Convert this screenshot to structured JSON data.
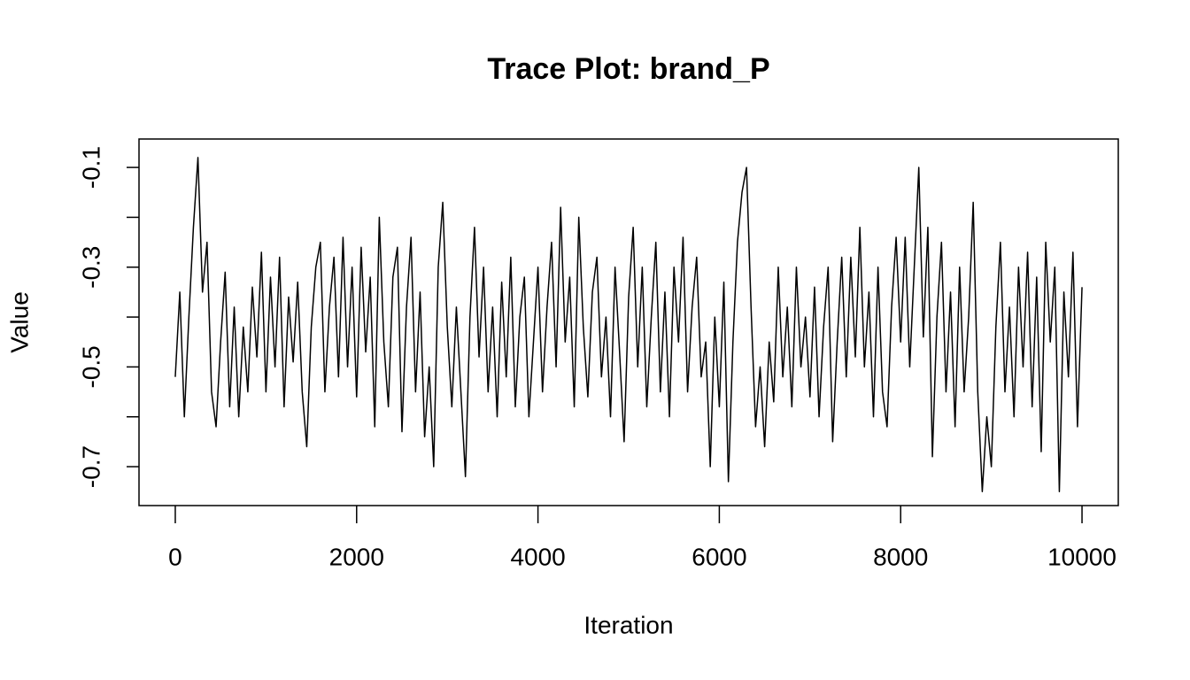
{
  "chart_data": {
    "type": "line",
    "title": "Trace Plot: brand_P",
    "x_label": "Iteration",
    "y_label": "Value",
    "color": "#000000",
    "x": [
      0,
      50,
      100,
      150,
      200,
      250,
      300,
      350,
      400,
      450,
      500,
      550,
      600,
      650,
      700,
      750,
      800,
      850,
      900,
      950,
      1000,
      1050,
      1100,
      1150,
      1200,
      1250,
      1300,
      1350,
      1400,
      1450,
      1500,
      1550,
      1600,
      1650,
      1700,
      1750,
      1800,
      1850,
      1900,
      1950,
      2000,
      2050,
      2100,
      2150,
      2200,
      2250,
      2300,
      2350,
      2400,
      2450,
      2500,
      2550,
      2600,
      2650,
      2700,
      2750,
      2800,
      2850,
      2900,
      2950,
      3000,
      3050,
      3100,
      3150,
      3200,
      3250,
      3300,
      3350,
      3400,
      3450,
      3500,
      3550,
      3600,
      3650,
      3700,
      3750,
      3800,
      3850,
      3900,
      3950,
      4000,
      4050,
      4100,
      4150,
      4200,
      4250,
      4300,
      4350,
      4400,
      4450,
      4500,
      4550,
      4600,
      4650,
      4700,
      4750,
      4800,
      4850,
      4900,
      4950,
      5000,
      5050,
      5100,
      5150,
      5200,
      5250,
      5300,
      5350,
      5400,
      5450,
      5500,
      5550,
      5600,
      5650,
      5700,
      5750,
      5800,
      5850,
      5900,
      5950,
      6000,
      6050,
      6100,
      6150,
      6200,
      6250,
      6300,
      6350,
      6400,
      6450,
      6500,
      6550,
      6600,
      6650,
      6700,
      6750,
      6800,
      6850,
      6900,
      6950,
      7000,
      7050,
      7100,
      7150,
      7200,
      7250,
      7300,
      7350,
      7400,
      7450,
      7500,
      7550,
      7600,
      7650,
      7700,
      7750,
      7800,
      7850,
      7900,
      7950,
      8000,
      8050,
      8100,
      8150,
      8200,
      8250,
      8300,
      8350,
      8400,
      8450,
      8500,
      8550,
      8600,
      8650,
      8700,
      8750,
      8800,
      8850,
      8900,
      8950,
      9000,
      9050,
      9100,
      9150,
      9200,
      9250,
      9300,
      9350,
      9400,
      9450,
      9500,
      9550,
      9600,
      9650,
      9700,
      9750,
      9800,
      9850,
      9900,
      9950,
      10000
    ],
    "values": [
      -0.52,
      -0.35,
      -0.6,
      -0.4,
      -0.22,
      -0.08,
      -0.35,
      -0.25,
      -0.55,
      -0.62,
      -0.45,
      -0.31,
      -0.58,
      -0.38,
      -0.6,
      -0.42,
      -0.55,
      -0.34,
      -0.48,
      -0.27,
      -0.55,
      -0.32,
      -0.5,
      -0.28,
      -0.58,
      -0.36,
      -0.49,
      -0.33,
      -0.55,
      -0.66,
      -0.42,
      -0.3,
      -0.25,
      -0.55,
      -0.38,
      -0.28,
      -0.52,
      -0.24,
      -0.5,
      -0.3,
      -0.56,
      -0.26,
      -0.47,
      -0.32,
      -0.62,
      -0.2,
      -0.45,
      -0.58,
      -0.32,
      -0.26,
      -0.63,
      -0.38,
      -0.24,
      -0.55,
      -0.35,
      -0.64,
      -0.5,
      -0.7,
      -0.3,
      -0.17,
      -0.42,
      -0.58,
      -0.38,
      -0.55,
      -0.72,
      -0.4,
      -0.22,
      -0.48,
      -0.3,
      -0.55,
      -0.38,
      -0.6,
      -0.33,
      -0.52,
      -0.28,
      -0.58,
      -0.4,
      -0.32,
      -0.6,
      -0.45,
      -0.3,
      -0.55,
      -0.38,
      -0.25,
      -0.5,
      -0.18,
      -0.45,
      -0.32,
      -0.58,
      -0.2,
      -0.42,
      -0.56,
      -0.35,
      -0.28,
      -0.52,
      -0.4,
      -0.6,
      -0.3,
      -0.47,
      -0.65,
      -0.36,
      -0.22,
      -0.5,
      -0.3,
      -0.58,
      -0.4,
      -0.25,
      -0.55,
      -0.35,
      -0.6,
      -0.3,
      -0.45,
      -0.24,
      -0.55,
      -0.38,
      -0.28,
      -0.52,
      -0.45,
      -0.7,
      -0.4,
      -0.58,
      -0.33,
      -0.73,
      -0.45,
      -0.25,
      -0.15,
      -0.1,
      -0.38,
      -0.62,
      -0.5,
      -0.66,
      -0.45,
      -0.57,
      -0.3,
      -0.52,
      -0.38,
      -0.58,
      -0.3,
      -0.5,
      -0.4,
      -0.56,
      -0.34,
      -0.6,
      -0.42,
      -0.3,
      -0.65,
      -0.45,
      -0.28,
      -0.52,
      -0.28,
      -0.48,
      -0.22,
      -0.5,
      -0.35,
      -0.6,
      -0.3,
      -0.55,
      -0.62,
      -0.38,
      -0.24,
      -0.45,
      -0.24,
      -0.5,
      -0.3,
      -0.1,
      -0.44,
      -0.22,
      -0.68,
      -0.4,
      -0.25,
      -0.55,
      -0.35,
      -0.62,
      -0.3,
      -0.55,
      -0.4,
      -0.17,
      -0.55,
      -0.75,
      -0.6,
      -0.7,
      -0.42,
      -0.25,
      -0.55,
      -0.38,
      -0.6,
      -0.3,
      -0.5,
      -0.27,
      -0.58,
      -0.32,
      -0.67,
      -0.25,
      -0.45,
      -0.3,
      -0.75,
      -0.35,
      -0.52,
      -0.27,
      -0.62,
      -0.34
    ],
    "xlim": [
      -400,
      10400
    ],
    "xticks": [
      0,
      2000,
      4000,
      6000,
      8000,
      10000
    ],
    "ylim": [
      -0.778,
      -0.043
    ],
    "yticks": [
      -0.1,
      -0.3,
      -0.5,
      -0.7
    ],
    "yminorticks": [
      -0.2,
      -0.4,
      -0.6
    ]
  }
}
